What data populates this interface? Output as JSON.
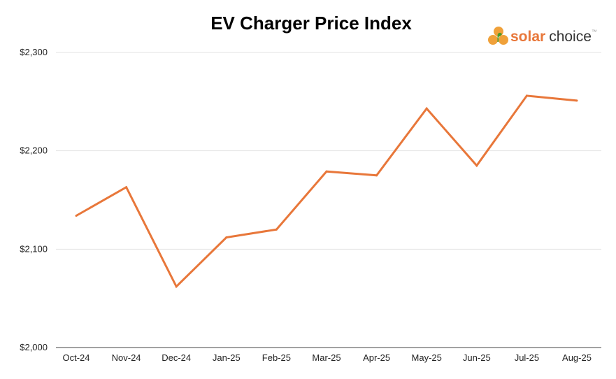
{
  "chart_data": {
    "type": "line",
    "title": "EV Charger Price Index",
    "xlabel": "",
    "ylabel": "",
    "categories": [
      "Oct-24",
      "Nov-24",
      "Dec-24",
      "Jan-25",
      "Feb-25",
      "Mar-25",
      "Apr-25",
      "May-25",
      "Jun-25",
      "Jul-25",
      "Aug-25"
    ],
    "series": [
      {
        "values": [
          2134,
          2163,
          2062,
          2112,
          2120,
          2179,
          2175,
          2243,
          2185,
          2256,
          2251
        ],
        "color": "#e8773a"
      }
    ],
    "ylim": [
      2000,
      2300
    ],
    "yticks": [
      2000,
      2100,
      2200,
      2300
    ],
    "ytick_labels": [
      "$2,000",
      "$2,100",
      "$2,200",
      "$2,300"
    ],
    "grid": "horizontal",
    "legend": "none"
  },
  "logo": {
    "word1": "solar",
    "word2": "choice",
    "mark": "™",
    "colors": {
      "bold_word": "#e8773a",
      "light_word": "#333333",
      "circles": "#f0a13a",
      "leaf": "#4c9a2a"
    }
  },
  "colors": {
    "grid": "#e3e3e3",
    "axis": "#444444"
  }
}
